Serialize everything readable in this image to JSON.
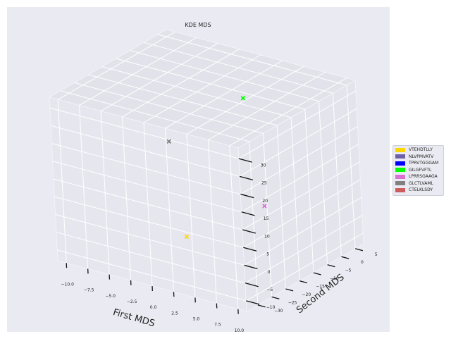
{
  "chart_data": {
    "type": "scatter",
    "projection": "3d",
    "title": "KDE MDS",
    "xlabel": "First MDS",
    "ylabel": "Second MDS",
    "zlabel": "",
    "xlim": [
      -11,
      11
    ],
    "ylim": [
      -13,
      33
    ],
    "zlim": [
      -34,
      8
    ],
    "x_ticks": [
      "−10.0",
      "−7.5",
      "−5.0",
      "−2.5",
      "0.0",
      "2.5",
      "5.0",
      "7.5",
      "10.0"
    ],
    "y_ticks": [
      "−10",
      "−5",
      "0",
      "5",
      "10",
      "15",
      "20",
      "25",
      "30"
    ],
    "z_ticks": [
      "−30",
      "−25",
      "−20",
      "−15",
      "−10",
      "−5",
      "0",
      "5"
    ],
    "grid": true,
    "legend_position": "center-right",
    "background_color": "#eaeaf2",
    "series": [
      {
        "name": "VTEHDTLLY",
        "color": "#ffd700",
        "points": [
          {
            "x": 2.0,
            "y": -1.0,
            "z": -27.0
          }
        ]
      },
      {
        "name": "NLVPMVATV",
        "color": "#7060a8",
        "points": []
      },
      {
        "name": "TPRVTGGGAM",
        "color": "#0000ff",
        "points": []
      },
      {
        "name": "GILGFVFTL",
        "color": "#00ff00",
        "points": [
          {
            "x": -1.0,
            "y": 22.0,
            "z": 4.0
          }
        ]
      },
      {
        "name": "LPRRSGAAGA",
        "color": "#da70d6",
        "points": [
          {
            "x": 8.0,
            "y": 7.0,
            "z": -17.0
          }
        ]
      },
      {
        "name": "GLCTLVAML",
        "color": "#808080",
        "points": [
          {
            "x": -9.0,
            "y": 6.0,
            "z": 1.0
          }
        ]
      },
      {
        "name": "CTELKLSDY",
        "color": "#cd5c5c",
        "points": []
      }
    ]
  }
}
